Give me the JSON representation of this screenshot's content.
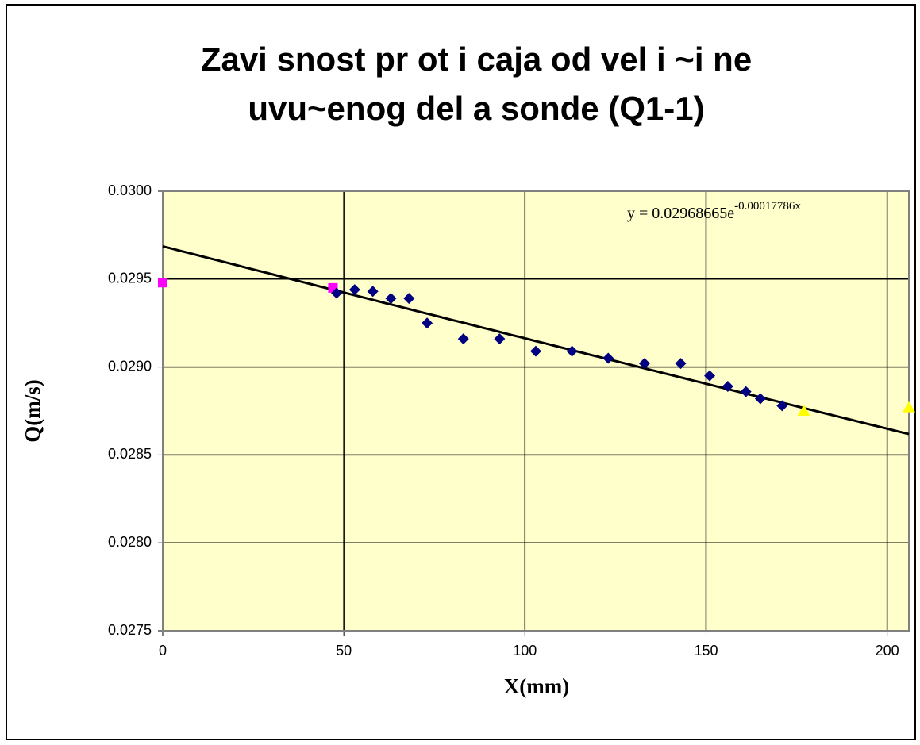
{
  "chart_data": {
    "type": "scatter",
    "title": [
      "Zavi snost pr ot i caja od vel i ~i ne",
      "uvu~enog del a sonde (Q1-1)"
    ],
    "x_label": "X(mm)",
    "y_label": "Q(m/s)",
    "xlim": [
      0,
      206
    ],
    "ylim": [
      0.0275,
      0.03
    ],
    "xticks": [
      0,
      50,
      100,
      150,
      200
    ],
    "yticks": [
      {
        "value": 0.0275,
        "label": "0.0275"
      },
      {
        "value": 0.028,
        "label": "0.0280"
      },
      {
        "value": 0.0285,
        "label": "0.0285"
      },
      {
        "value": 0.029,
        "label": "0.0290"
      },
      {
        "value": 0.0295,
        "label": "0.0295"
      },
      {
        "value": 0.03,
        "label": "0.0300"
      }
    ],
    "grid": true,
    "background": "#ffffcc",
    "series": [
      {
        "color": "#ff00ff",
        "marker": "square",
        "x": [
          0,
          47
        ],
        "values": [
          0.02948,
          0.02945
        ]
      },
      {
        "color": "#000080",
        "marker": "diamond",
        "x": [
          48,
          53,
          58,
          63,
          68,
          73,
          83,
          93,
          103,
          113,
          123,
          133,
          143,
          151,
          156,
          161,
          165,
          171
        ],
        "values": [
          0.02942,
          0.02944,
          0.02943,
          0.02939,
          0.02939,
          0.02925,
          0.02916,
          0.02916,
          0.02909,
          0.02909,
          0.02905,
          0.02902,
          0.02902,
          0.02895,
          0.02889,
          0.02886,
          0.02882,
          0.02878
        ]
      },
      {
        "color": "#ffff00",
        "marker": "triangle",
        "x": [
          177,
          206
        ],
        "values": [
          0.02875,
          0.02877
        ]
      }
    ],
    "trendline": {
      "type": "exponential",
      "a": 0.02968665,
      "b": -0.00017786,
      "color": "#000000",
      "equation": {
        "base": "y = 0.02968665e",
        "exponent": "-0.00017786x"
      }
    }
  }
}
